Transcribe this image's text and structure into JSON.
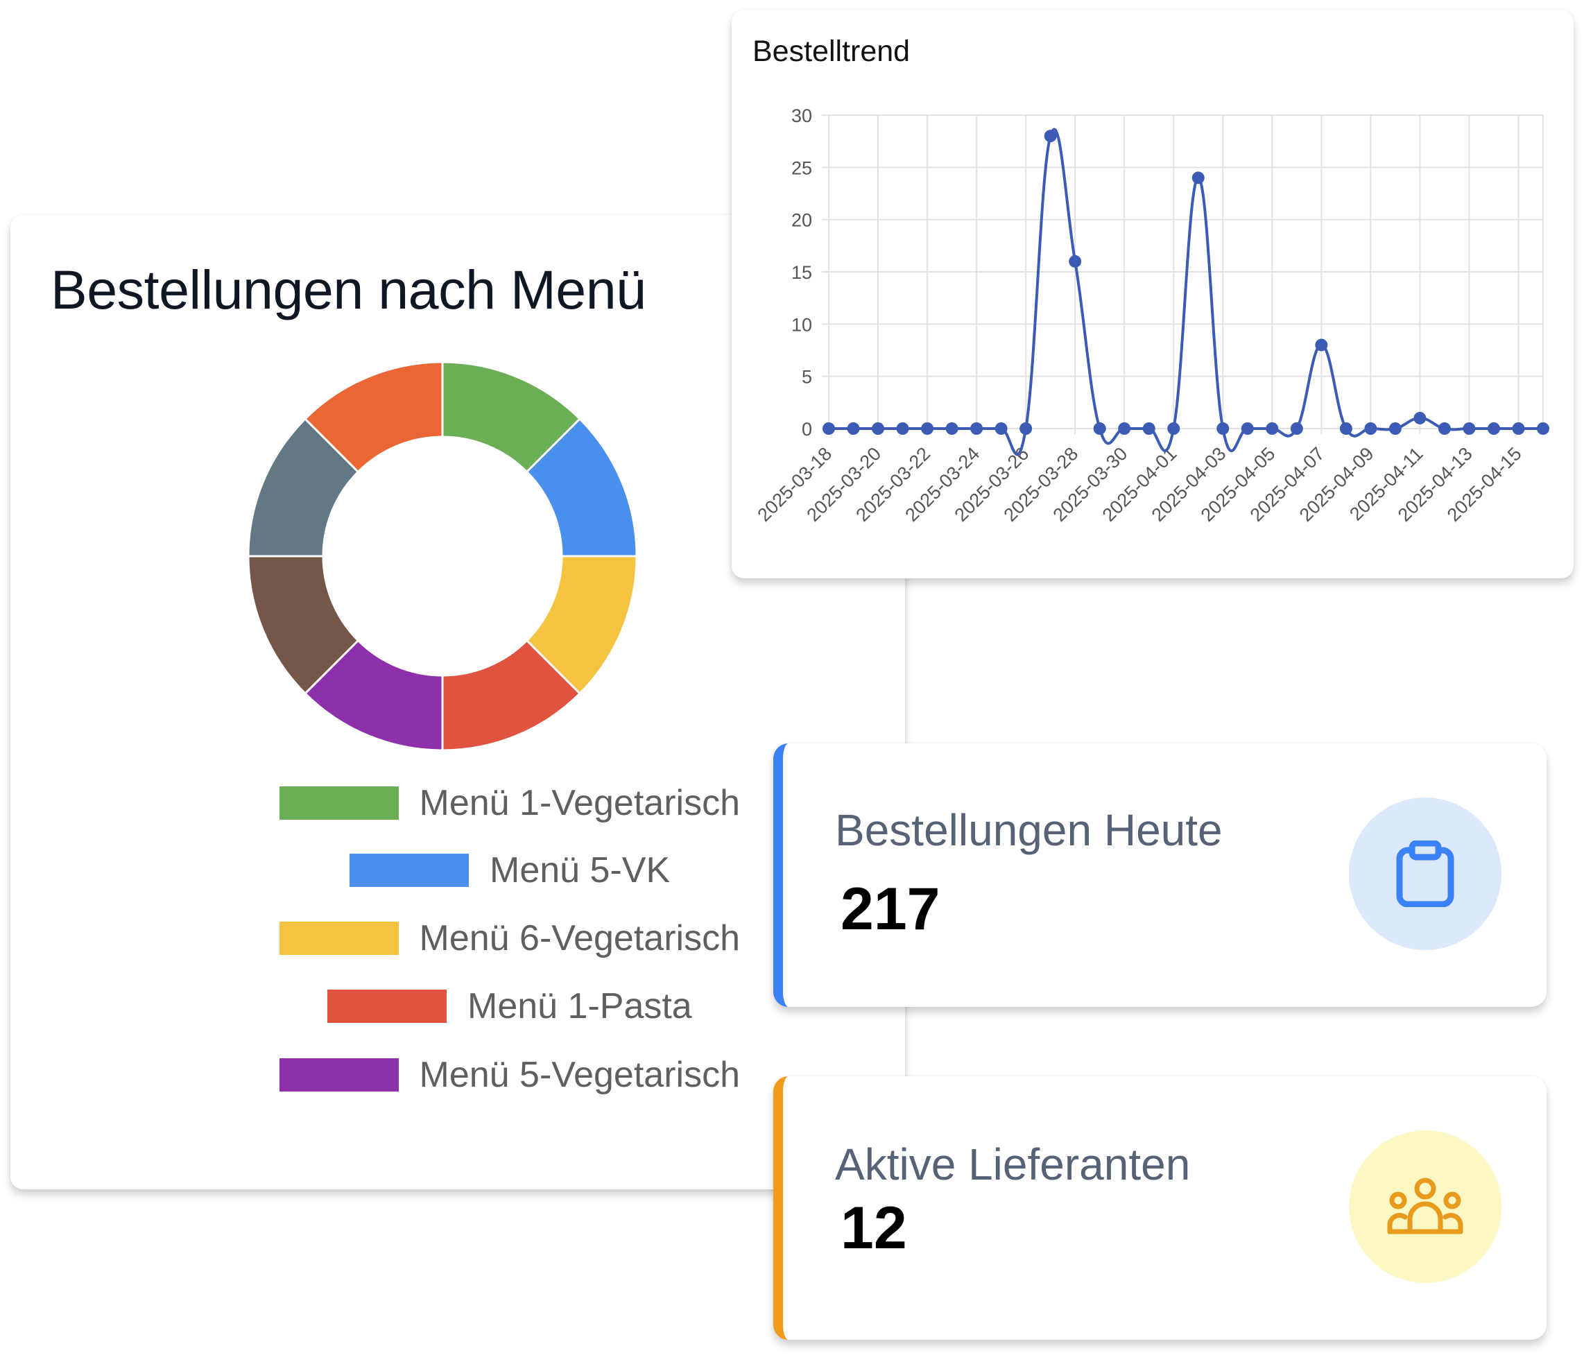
{
  "donut": {
    "title": "Bestellungen nach Menü",
    "chart_data": {
      "type": "pie",
      "slices": [
        {
          "label": "Menü 1-Vegetarisch",
          "value": 1,
          "color": "#6aae55"
        },
        {
          "label": "Menü 5-VK",
          "value": 1,
          "color": "#4a8fec"
        },
        {
          "label": "Menü 6-Vegetarisch",
          "value": 1,
          "color": "#f4c33f"
        },
        {
          "label": "Menü 1-Pasta",
          "value": 1,
          "color": "#e05340"
        },
        {
          "label": "Menü 5-Vegetarisch",
          "value": 1,
          "color": "#8e30ac"
        },
        {
          "label": "",
          "value": 1,
          "color": "#75574a"
        },
        {
          "label": "",
          "value": 1,
          "color": "#627985"
        },
        {
          "label": "",
          "value": 1,
          "color": "#ea6634"
        }
      ],
      "legend": [
        {
          "label": "Menü 1-Vegetarisch",
          "color": "#6aae55"
        },
        {
          "label": "Menü 5-VK",
          "color": "#4a8fec"
        },
        {
          "label": "Menü 6-Vegetarisch",
          "color": "#f4c33f"
        },
        {
          "label": "Menü 1-Pasta",
          "color": "#e05340"
        },
        {
          "label": "Menü 5-Vegetarisch",
          "color": "#8e30ac"
        }
      ]
    }
  },
  "trend": {
    "title": "Bestelltrend",
    "chart_data": {
      "type": "line",
      "title": "Bestelltrend",
      "x": [
        "2025-03-18",
        "2025-03-19",
        "2025-03-20",
        "2025-03-21",
        "2025-03-22",
        "2025-03-23",
        "2025-03-24",
        "2025-03-25",
        "2025-03-26",
        "2025-03-27",
        "2025-03-28",
        "2025-03-29",
        "2025-03-30",
        "2025-03-31",
        "2025-04-01",
        "2025-04-02",
        "2025-04-03",
        "2025-04-04",
        "2025-04-05",
        "2025-04-06",
        "2025-04-07",
        "2025-04-08",
        "2025-04-09",
        "2025-04-10",
        "2025-04-11",
        "2025-04-12",
        "2025-04-13",
        "2025-04-14",
        "2025-04-15",
        "2025-04-16"
      ],
      "x_tick_labels": [
        "2025-03-18",
        "2025-03-20",
        "2025-03-22",
        "2025-03-24",
        "2025-03-26",
        "2025-03-28",
        "2025-03-30",
        "2025-04-01",
        "2025-04-03",
        "2025-04-05",
        "2025-04-07",
        "2025-04-09",
        "2025-04-11",
        "2025-04-13",
        "2025-04-15"
      ],
      "series": [
        {
          "name": "",
          "color": "#3b5bb5",
          "values": [
            0,
            0,
            0,
            0,
            0,
            0,
            0,
            0,
            0,
            28,
            16,
            0,
            0,
            0,
            0,
            24,
            0,
            0,
            0,
            0,
            8,
            0,
            0,
            0,
            1,
            0,
            0,
            0,
            0,
            0
          ]
        }
      ],
      "ylim": [
        0,
        30
      ],
      "yticks": [
        0,
        5,
        10,
        15,
        20,
        25,
        30
      ],
      "grid": true
    }
  },
  "stats": {
    "orders": {
      "label": "Bestellungen Heute",
      "value": "217",
      "icon": "clipboard-icon",
      "accent": "#3b82f6",
      "icon_bg": "#dce8fc",
      "icon_color": "#3b82f6"
    },
    "suppliers": {
      "label": "Aktive Lieferanten",
      "value": "12",
      "icon": "user-group-icon",
      "accent": "#f29a1c",
      "icon_bg": "#fdf7c4",
      "icon_color": "#e89a1c"
    }
  }
}
